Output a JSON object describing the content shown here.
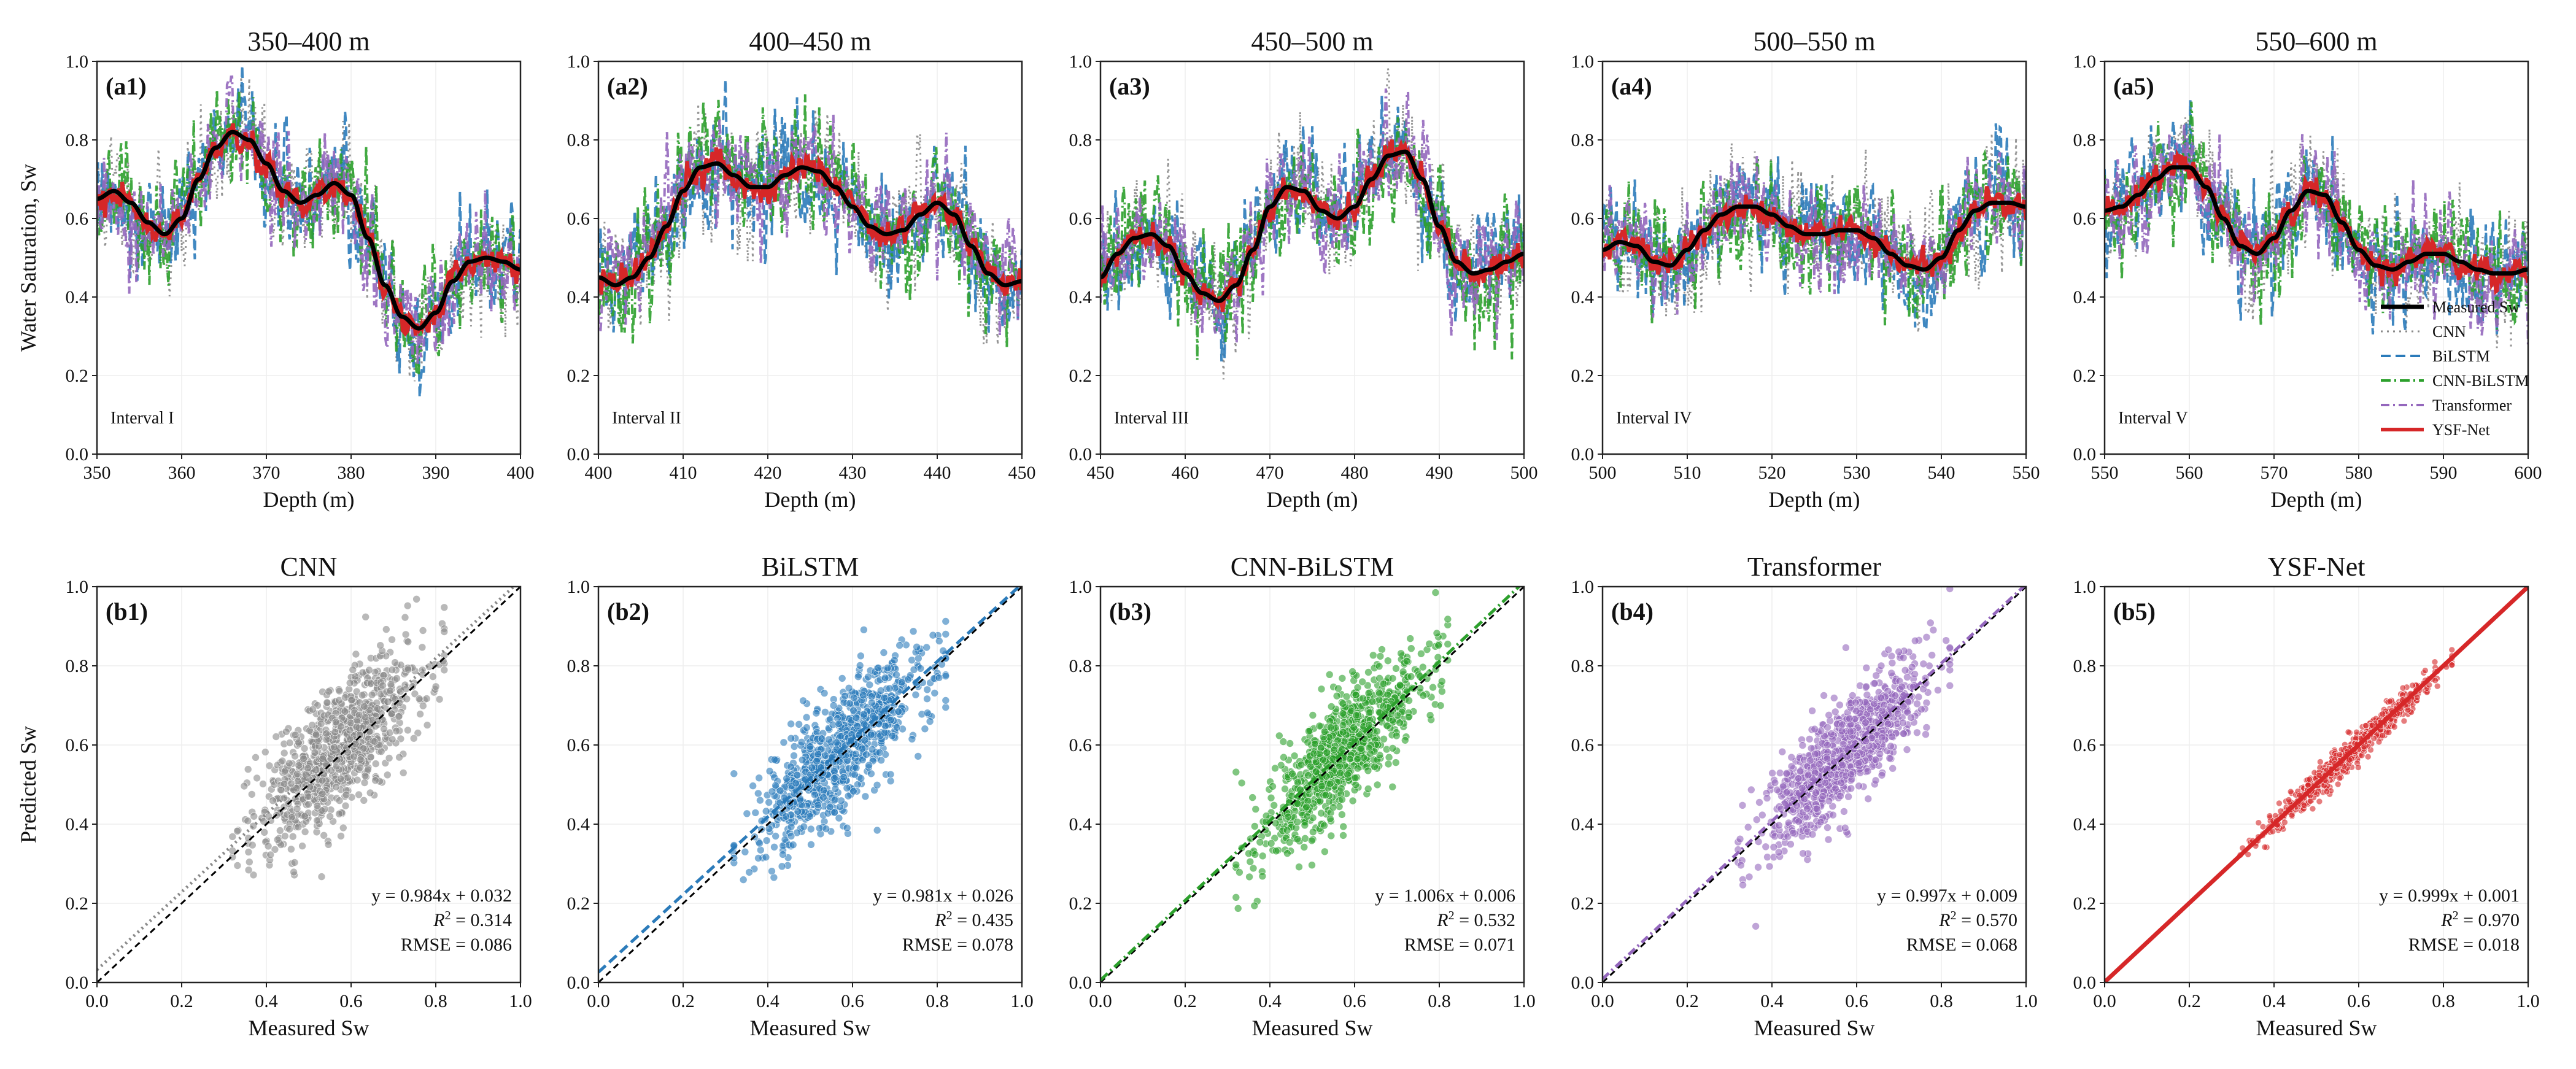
{
  "colors": {
    "CNN": "#8a8a8a",
    "BiLSTM": "#2b7bba",
    "CNN-BiLSTM": "#2ca02c",
    "Transformer": "#9467bd",
    "YSF-Net": "#d62728",
    "Measured Sw": "#000000"
  },
  "chart_data": [
    {
      "type": "line",
      "label": "(a1)",
      "title": "350–400 m",
      "annotation": "Interval I",
      "xlabel": "Depth (m)",
      "ylabel": "Water Saturation, Sw",
      "xlim": [
        350,
        400
      ],
      "ylim": [
        0.0,
        1.0
      ],
      "xticks": [
        "350",
        "360",
        "370",
        "380",
        "390",
        "400"
      ],
      "yticks": [
        "0.0",
        "0.2",
        "0.4",
        "0.6",
        "0.8",
        "1.0"
      ],
      "measured": {
        "name": "Measured Sw",
        "x": [
          350,
          352,
          354,
          356,
          358,
          360,
          362,
          364,
          366,
          368,
          370,
          372,
          374,
          376,
          378,
          380,
          382,
          384,
          386,
          388,
          390,
          392,
          394,
          396,
          398,
          400
        ],
        "y": [
          0.65,
          0.67,
          0.64,
          0.59,
          0.56,
          0.6,
          0.7,
          0.78,
          0.82,
          0.8,
          0.74,
          0.67,
          0.64,
          0.66,
          0.69,
          0.66,
          0.55,
          0.43,
          0.35,
          0.32,
          0.36,
          0.44,
          0.49,
          0.5,
          0.49,
          0.47
        ]
      },
      "series": [
        {
          "name": "CNN",
          "noise": 0.09,
          "seed": 11
        },
        {
          "name": "BiLSTM",
          "noise": 0.08,
          "seed": 12
        },
        {
          "name": "CNN-BiLSTM",
          "noise": 0.08,
          "seed": 13
        },
        {
          "name": "Transformer",
          "noise": 0.075,
          "seed": 14
        },
        {
          "name": "YSF-Net",
          "noise": 0.02,
          "seed": 15
        }
      ]
    },
    {
      "type": "line",
      "label": "(a2)",
      "title": "400–450 m",
      "annotation": "Interval II",
      "xlabel": "Depth (m)",
      "xlim": [
        400,
        450
      ],
      "ylim": [
        0.0,
        1.0
      ],
      "xticks": [
        "400",
        "410",
        "420",
        "430",
        "440",
        "450"
      ],
      "yticks": [
        "0.0",
        "0.2",
        "0.4",
        "0.6",
        "0.8",
        "1.0"
      ],
      "measured": {
        "name": "Measured Sw",
        "x": [
          400,
          402,
          404,
          406,
          408,
          410,
          412,
          414,
          416,
          418,
          420,
          422,
          424,
          426,
          428,
          430,
          432,
          434,
          436,
          438,
          440,
          442,
          444,
          446,
          448,
          450
        ],
        "y": [
          0.45,
          0.43,
          0.45,
          0.5,
          0.58,
          0.67,
          0.73,
          0.74,
          0.71,
          0.68,
          0.68,
          0.71,
          0.73,
          0.72,
          0.68,
          0.63,
          0.58,
          0.56,
          0.57,
          0.61,
          0.64,
          0.61,
          0.53,
          0.46,
          0.43,
          0.44
        ]
      },
      "series": [
        {
          "name": "CNN",
          "noise": 0.09,
          "seed": 21
        },
        {
          "name": "BiLSTM",
          "noise": 0.08,
          "seed": 22
        },
        {
          "name": "CNN-BiLSTM",
          "noise": 0.08,
          "seed": 23
        },
        {
          "name": "Transformer",
          "noise": 0.075,
          "seed": 24
        },
        {
          "name": "YSF-Net",
          "noise": 0.02,
          "seed": 25
        }
      ]
    },
    {
      "type": "line",
      "label": "(a3)",
      "title": "450–500 m",
      "annotation": "Interval III",
      "xlabel": "Depth (m)",
      "xlim": [
        450,
        500
      ],
      "ylim": [
        0.0,
        1.0
      ],
      "xticks": [
        "450",
        "460",
        "470",
        "480",
        "490",
        "500"
      ],
      "yticks": [
        "0.0",
        "0.2",
        "0.4",
        "0.6",
        "0.8",
        "1.0"
      ],
      "measured": {
        "name": "Measured Sw",
        "x": [
          450,
          452,
          454,
          456,
          458,
          460,
          462,
          464,
          466,
          468,
          470,
          472,
          474,
          476,
          478,
          480,
          482,
          484,
          486,
          488,
          490,
          492,
          494,
          496,
          498,
          500
        ],
        "y": [
          0.45,
          0.51,
          0.55,
          0.56,
          0.53,
          0.46,
          0.41,
          0.39,
          0.43,
          0.52,
          0.63,
          0.68,
          0.67,
          0.62,
          0.6,
          0.63,
          0.7,
          0.76,
          0.77,
          0.7,
          0.58,
          0.49,
          0.46,
          0.47,
          0.49,
          0.51
        ]
      },
      "series": [
        {
          "name": "CNN",
          "noise": 0.09,
          "seed": 31
        },
        {
          "name": "BiLSTM",
          "noise": 0.08,
          "seed": 32
        },
        {
          "name": "CNN-BiLSTM",
          "noise": 0.08,
          "seed": 33
        },
        {
          "name": "Transformer",
          "noise": 0.075,
          "seed": 34
        },
        {
          "name": "YSF-Net",
          "noise": 0.02,
          "seed": 35
        }
      ]
    },
    {
      "type": "line",
      "label": "(a4)",
      "title": "500–550 m",
      "annotation": "Interval IV",
      "xlabel": "Depth (m)",
      "xlim": [
        500,
        550
      ],
      "ylim": [
        0.0,
        1.0
      ],
      "xticks": [
        "500",
        "510",
        "520",
        "530",
        "540",
        "550"
      ],
      "yticks": [
        "0.0",
        "0.2",
        "0.4",
        "0.6",
        "0.8",
        "1.0"
      ],
      "measured": {
        "name": "Measured Sw",
        "x": [
          500,
          502,
          504,
          506,
          508,
          510,
          512,
          514,
          516,
          518,
          520,
          522,
          524,
          526,
          528,
          530,
          532,
          534,
          536,
          538,
          540,
          542,
          544,
          546,
          548,
          550
        ],
        "y": [
          0.52,
          0.54,
          0.53,
          0.49,
          0.48,
          0.52,
          0.57,
          0.61,
          0.63,
          0.63,
          0.61,
          0.58,
          0.56,
          0.56,
          0.57,
          0.57,
          0.55,
          0.51,
          0.48,
          0.47,
          0.5,
          0.57,
          0.62,
          0.64,
          0.64,
          0.63
        ]
      },
      "series": [
        {
          "name": "CNN",
          "noise": 0.09,
          "seed": 41
        },
        {
          "name": "BiLSTM",
          "noise": 0.08,
          "seed": 42
        },
        {
          "name": "CNN-BiLSTM",
          "noise": 0.08,
          "seed": 43
        },
        {
          "name": "Transformer",
          "noise": 0.075,
          "seed": 44
        },
        {
          "name": "YSF-Net",
          "noise": 0.02,
          "seed": 45
        }
      ]
    },
    {
      "type": "line",
      "label": "(a5)",
      "title": "550–600 m",
      "annotation": "Interval V",
      "xlabel": "Depth (m)",
      "xlim": [
        550,
        600
      ],
      "ylim": [
        0.0,
        1.0
      ],
      "xticks": [
        "550",
        "560",
        "570",
        "580",
        "590",
        "600"
      ],
      "yticks": [
        "0.0",
        "0.2",
        "0.4",
        "0.6",
        "0.8",
        "1.0"
      ],
      "legend_position": "right",
      "measured": {
        "name": "Measured Sw",
        "x": [
          550,
          552,
          554,
          556,
          558,
          560,
          562,
          564,
          566,
          568,
          570,
          572,
          574,
          576,
          578,
          580,
          582,
          584,
          586,
          588,
          590,
          592,
          594,
          596,
          598,
          600
        ],
        "y": [
          0.62,
          0.63,
          0.66,
          0.7,
          0.73,
          0.73,
          0.68,
          0.6,
          0.53,
          0.51,
          0.55,
          0.62,
          0.67,
          0.66,
          0.59,
          0.52,
          0.48,
          0.47,
          0.49,
          0.51,
          0.51,
          0.49,
          0.47,
          0.46,
          0.46,
          0.47
        ]
      },
      "series": [
        {
          "name": "CNN",
          "noise": 0.09,
          "seed": 51
        },
        {
          "name": "BiLSTM",
          "noise": 0.08,
          "seed": 52
        },
        {
          "name": "CNN-BiLSTM",
          "noise": 0.08,
          "seed": 53
        },
        {
          "name": "Transformer",
          "noise": 0.075,
          "seed": 54
        },
        {
          "name": "YSF-Net",
          "noise": 0.02,
          "seed": 55
        }
      ],
      "legend": [
        "Measured Sw",
        "CNN",
        "BiLSTM",
        "CNN-BiLSTM",
        "Transformer",
        "YSF-Net"
      ]
    },
    {
      "type": "scatter",
      "label": "(b1)",
      "title": "CNN",
      "model": "CNN",
      "xlabel": "Measured Sw",
      "ylabel": "Predicted Sw",
      "xlim": [
        0.0,
        1.0
      ],
      "ylim": [
        0.0,
        1.0
      ],
      "xticks": [
        "0.0",
        "0.2",
        "0.4",
        "0.6",
        "0.8",
        "1.0"
      ],
      "yticks": [
        "0.0",
        "0.2",
        "0.4",
        "0.6",
        "0.8",
        "1.0"
      ],
      "n_points": 900,
      "x_range": [
        0.32,
        0.82
      ],
      "spread": 0.085,
      "slope": 0.984,
      "intercept": 0.032,
      "equation": "y = 0.984x + 0.032",
      "r2_label": "R",
      "r2_value": " = 0.314",
      "rmse": "RMSE = 0.086",
      "seed": 101
    },
    {
      "type": "scatter",
      "label": "(b2)",
      "title": "BiLSTM",
      "model": "BiLSTM",
      "xlabel": "Measured Sw",
      "xlim": [
        0.0,
        1.0
      ],
      "ylim": [
        0.0,
        1.0
      ],
      "xticks": [
        "0.0",
        "0.2",
        "0.4",
        "0.6",
        "0.8",
        "1.0"
      ],
      "yticks": [
        "0.0",
        "0.2",
        "0.4",
        "0.6",
        "0.8",
        "1.0"
      ],
      "n_points": 900,
      "x_range": [
        0.32,
        0.82
      ],
      "spread": 0.078,
      "slope": 0.981,
      "intercept": 0.026,
      "equation": "y = 0.981x + 0.026",
      "r2_label": "R",
      "r2_value": " = 0.435",
      "rmse": "RMSE = 0.078",
      "seed": 102
    },
    {
      "type": "scatter",
      "label": "(b3)",
      "title": "CNN-BiLSTM",
      "model": "CNN-BiLSTM",
      "xlabel": "Measured Sw",
      "xlim": [
        0.0,
        1.0
      ],
      "ylim": [
        0.0,
        1.0
      ],
      "xticks": [
        "0.0",
        "0.2",
        "0.4",
        "0.6",
        "0.8",
        "1.0"
      ],
      "yticks": [
        "0.0",
        "0.2",
        "0.4",
        "0.6",
        "0.8",
        "1.0"
      ],
      "n_points": 900,
      "x_range": [
        0.32,
        0.82
      ],
      "spread": 0.071,
      "slope": 1.006,
      "intercept": 0.006,
      "equation": "y = 1.006x + 0.006",
      "r2_label": "R",
      "r2_value": " = 0.532",
      "rmse": "RMSE = 0.071",
      "seed": 103
    },
    {
      "type": "scatter",
      "label": "(b4)",
      "title": "Transformer",
      "model": "Transformer",
      "xlabel": "Measured Sw",
      "xlim": [
        0.0,
        1.0
      ],
      "ylim": [
        0.0,
        1.0
      ],
      "xticks": [
        "0.0",
        "0.2",
        "0.4",
        "0.6",
        "0.8",
        "1.0"
      ],
      "yticks": [
        "0.0",
        "0.2",
        "0.4",
        "0.6",
        "0.8",
        "1.0"
      ],
      "n_points": 900,
      "x_range": [
        0.32,
        0.82
      ],
      "spread": 0.068,
      "slope": 0.997,
      "intercept": 0.009,
      "equation": "y = 0.997x + 0.009",
      "r2_label": "R",
      "r2_value": " = 0.570",
      "rmse": "RMSE = 0.068",
      "seed": 104
    },
    {
      "type": "scatter",
      "label": "(b5)",
      "title": "YSF-Net",
      "model": "YSF-Net",
      "xlabel": "Measured Sw",
      "xlim": [
        0.0,
        1.0
      ],
      "ylim": [
        0.0,
        1.0
      ],
      "xticks": [
        "0.0",
        "0.2",
        "0.4",
        "0.6",
        "0.8",
        "1.0"
      ],
      "yticks": [
        "0.0",
        "0.2",
        "0.4",
        "0.6",
        "0.8",
        "1.0"
      ],
      "n_points": 700,
      "x_range": [
        0.32,
        0.82
      ],
      "spread": 0.018,
      "slope": 0.999,
      "intercept": 0.001,
      "equation": "y = 0.999x + 0.001",
      "r2_label": "R",
      "r2_value": " = 0.970",
      "rmse": "RMSE = 0.018",
      "seed": 105
    }
  ]
}
